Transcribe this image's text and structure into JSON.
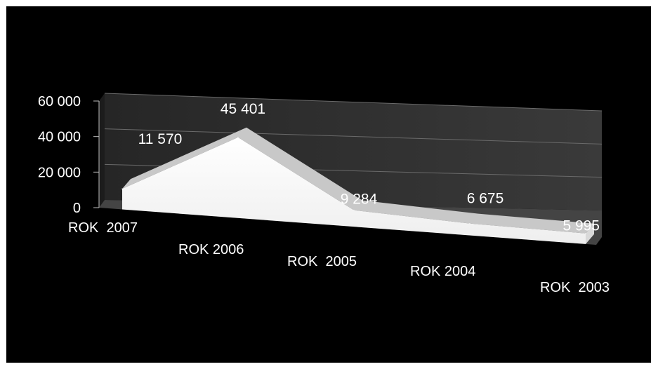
{
  "chart_data": {
    "type": "area",
    "categories": [
      "ROK  2007",
      "ROK 2006",
      "ROK  2005",
      "ROK 2004",
      "ROK  2003"
    ],
    "values": [
      11570,
      45401,
      9284,
      6675,
      5995
    ],
    "data_labels": [
      "11 570",
      "45 401",
      "9 284",
      "6 675",
      "5 995"
    ],
    "y_ticks": [
      {
        "value": 60000,
        "label": "60 000"
      },
      {
        "value": 40000,
        "label": "40 000"
      },
      {
        "value": 20000,
        "label": "20 000"
      },
      {
        "value": 0,
        "label": "0"
      }
    ],
    "ylim": [
      0,
      60000
    ],
    "grid": true,
    "three_d": true,
    "legend": "none",
    "title": "",
    "xlabel": "",
    "ylabel": ""
  },
  "colors": {
    "background": "#000000",
    "wall": "#2e2e2e",
    "floor": "#444444",
    "area_front": "#ffffff",
    "area_top": "#c8c8c8",
    "gridline": "#6a6a6a",
    "text": "#ffffff"
  }
}
